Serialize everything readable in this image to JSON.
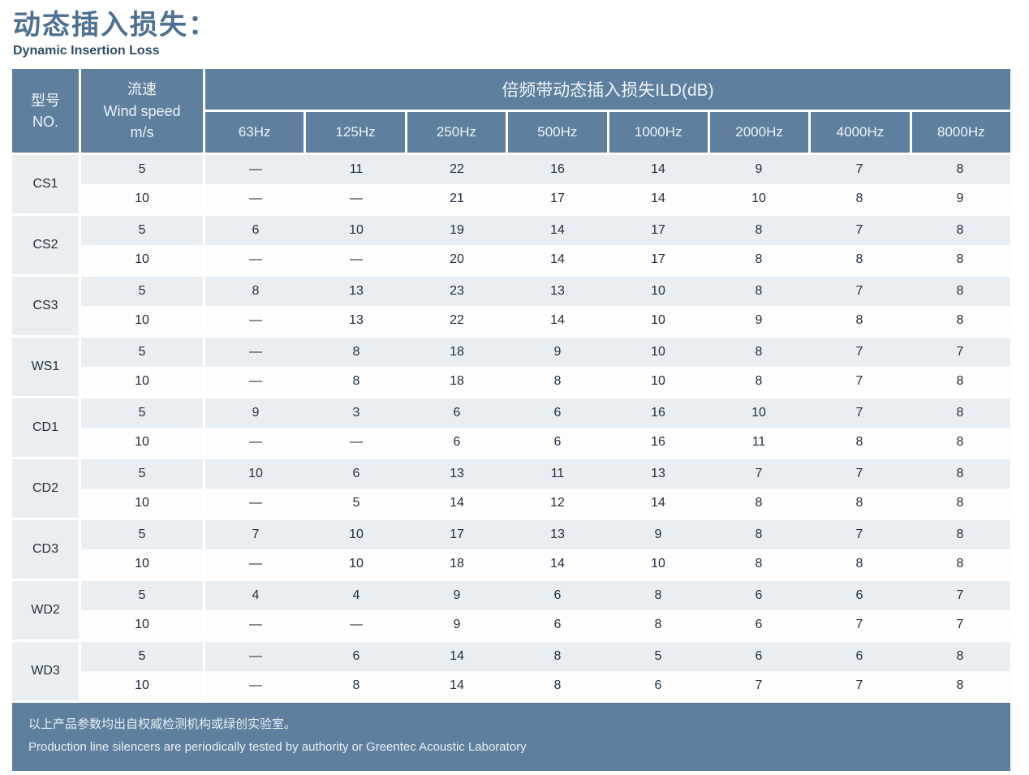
{
  "page": {
    "title": "动态插入损失：",
    "subtitle": "Dynamic Insertion Loss"
  },
  "table": {
    "header": {
      "model_zh": "型号",
      "model_en": "NO.",
      "wind_zh": "流速",
      "wind_en": "Wind speed",
      "wind_unit": "m/s",
      "band_title": "倍频带动态插入损失ILD(dB)",
      "freq_columns": [
        "63Hz",
        "125Hz",
        "250Hz",
        "500Hz",
        "1000Hz",
        "2000Hz",
        "4000Hz",
        "8000Hz"
      ]
    },
    "rows": [
      {
        "model": "CS1",
        "speeds": [
          {
            "speed": "5",
            "values": [
              "—",
              "11",
              "22",
              "16",
              "14",
              "9",
              "7",
              "8"
            ]
          },
          {
            "speed": "10",
            "values": [
              "—",
              "—",
              "21",
              "17",
              "14",
              "10",
              "8",
              "9"
            ]
          }
        ]
      },
      {
        "model": "CS2",
        "speeds": [
          {
            "speed": "5",
            "values": [
              "6",
              "10",
              "19",
              "14",
              "17",
              "8",
              "7",
              "8"
            ]
          },
          {
            "speed": "10",
            "values": [
              "—",
              "—",
              "20",
              "14",
              "17",
              "8",
              "8",
              "8"
            ]
          }
        ]
      },
      {
        "model": "CS3",
        "speeds": [
          {
            "speed": "5",
            "values": [
              "8",
              "13",
              "23",
              "13",
              "10",
              "8",
              "7",
              "8"
            ]
          },
          {
            "speed": "10",
            "values": [
              "—",
              "13",
              "22",
              "14",
              "10",
              "9",
              "8",
              "8"
            ]
          }
        ]
      },
      {
        "model": "WS1",
        "speeds": [
          {
            "speed": "5",
            "values": [
              "—",
              "8",
              "18",
              "9",
              "10",
              "8",
              "7",
              "7"
            ]
          },
          {
            "speed": "10",
            "values": [
              "—",
              "8",
              "18",
              "8",
              "10",
              "8",
              "7",
              "8"
            ]
          }
        ]
      },
      {
        "model": "CD1",
        "speeds": [
          {
            "speed": "5",
            "values": [
              "9",
              "3",
              "6",
              "6",
              "16",
              "10",
              "7",
              "8"
            ]
          },
          {
            "speed": "10",
            "values": [
              "—",
              "—",
              "6",
              "6",
              "16",
              "11",
              "8",
              "8"
            ]
          }
        ]
      },
      {
        "model": "CD2",
        "speeds": [
          {
            "speed": "5",
            "values": [
              "10",
              "6",
              "13",
              "11",
              "13",
              "7",
              "7",
              "8"
            ]
          },
          {
            "speed": "10",
            "values": [
              "—",
              "5",
              "14",
              "12",
              "14",
              "8",
              "8",
              "8"
            ]
          }
        ]
      },
      {
        "model": "CD3",
        "speeds": [
          {
            "speed": "5",
            "values": [
              "7",
              "10",
              "17",
              "13",
              "9",
              "8",
              "7",
              "8"
            ]
          },
          {
            "speed": "10",
            "values": [
              "—",
              "10",
              "18",
              "14",
              "10",
              "8",
              "8",
              "8"
            ]
          }
        ]
      },
      {
        "model": "WD2",
        "speeds": [
          {
            "speed": "5",
            "values": [
              "4",
              "4",
              "9",
              "6",
              "8",
              "6",
              "6",
              "7"
            ]
          },
          {
            "speed": "10",
            "values": [
              "—",
              "—",
              "9",
              "6",
              "8",
              "6",
              "7",
              "7"
            ]
          }
        ]
      },
      {
        "model": "WD3",
        "speeds": [
          {
            "speed": "5",
            "values": [
              "—",
              "6",
              "14",
              "8",
              "5",
              "6",
              "6",
              "8"
            ]
          },
          {
            "speed": "10",
            "values": [
              "—",
              "8",
              "14",
              "8",
              "6",
              "7",
              "7",
              "8"
            ]
          }
        ]
      }
    ]
  },
  "footer": {
    "line1_zh": "以上产品参数均出自权威检测机构或绿创实验室。",
    "line2_en": "Production line silencers are periodically tested by authority or Greentec Acoustic Laboratory"
  },
  "colors": {
    "header_bg": "#5e809e",
    "header_text": "#eef3f7",
    "row_band_bg": "#e9eef3",
    "row_white_bg": "#fdfdfd",
    "model_cell_bg": "#ebeef0",
    "data_text": "#22303f",
    "title_text": "#4e7191",
    "subtitle_text": "#2f4d68"
  }
}
